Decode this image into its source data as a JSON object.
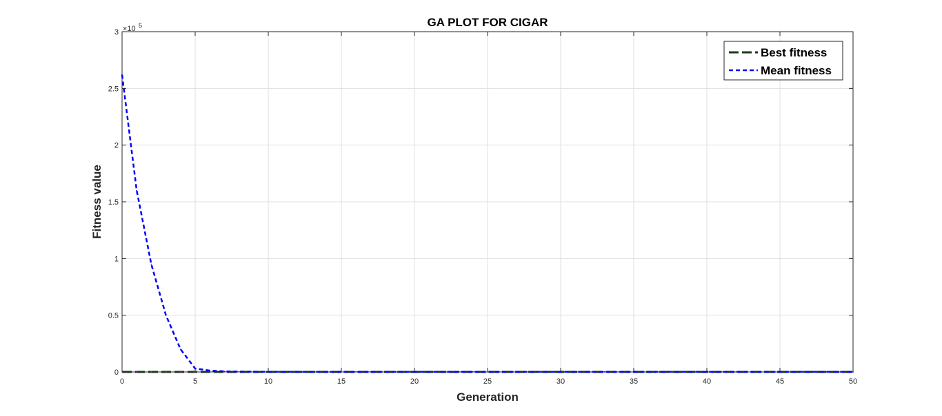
{
  "chart_data": {
    "type": "line",
    "title": "GA PLOT FOR CIGAR",
    "xlabel": "Generation",
    "ylabel": "Fitness value",
    "y_exponent_label": "×10",
    "y_exponent_power": "5",
    "xlim": [
      0,
      50
    ],
    "ylim": [
      0,
      3
    ],
    "xticks": [
      "0",
      "5",
      "10",
      "15",
      "20",
      "25",
      "30",
      "35",
      "40",
      "45",
      "50"
    ],
    "yticks": [
      "0",
      "0.5",
      "1",
      "1.5",
      "2",
      "2.5",
      "3"
    ],
    "grid": true,
    "legend_position": "top-right",
    "x": [
      0,
      1,
      2,
      3,
      4,
      5,
      6,
      7,
      8,
      9,
      10,
      11,
      12,
      13,
      14,
      15,
      16,
      17,
      18,
      19,
      20,
      21,
      22,
      23,
      24,
      25,
      26,
      27,
      28,
      29,
      30,
      31,
      32,
      33,
      34,
      35,
      36,
      37,
      38,
      39,
      40,
      41,
      42,
      43,
      44,
      45,
      46,
      47,
      48,
      49,
      50
    ],
    "series": [
      {
        "name": "Best fitness",
        "color": "#1b3a1b",
        "dash": "long-dash",
        "values": [
          0,
          0,
          0,
          0,
          0,
          0,
          0,
          0,
          0,
          0,
          0,
          0,
          0,
          0,
          0,
          0,
          0,
          0,
          0,
          0,
          0,
          0,
          0,
          0,
          0,
          0,
          0,
          0,
          0,
          0,
          0,
          0,
          0,
          0,
          0,
          0,
          0,
          0,
          0,
          0,
          0,
          0,
          0,
          0,
          0,
          0,
          0,
          0,
          0,
          0,
          0
        ]
      },
      {
        "name": "Mean fitness",
        "color": "#0000ff",
        "dash": "short-dash",
        "values": [
          2.62,
          1.6,
          0.95,
          0.5,
          0.2,
          0.03,
          0.012,
          0.005,
          0.003,
          0.002,
          0.0015,
          0.001,
          0.001,
          0.001,
          0.001,
          0.001,
          0.001,
          0.001,
          0.001,
          0.001,
          0.001,
          0.001,
          0.001,
          0.001,
          0.001,
          0.001,
          0.001,
          0.001,
          0.001,
          0.001,
          0.001,
          0.001,
          0.001,
          0.001,
          0.001,
          0.001,
          0.001,
          0.001,
          0.001,
          0.001,
          0.001,
          0.001,
          0.001,
          0.001,
          0.001,
          0.001,
          0.001,
          0.001,
          0.001,
          0.001,
          0.001
        ]
      }
    ]
  }
}
